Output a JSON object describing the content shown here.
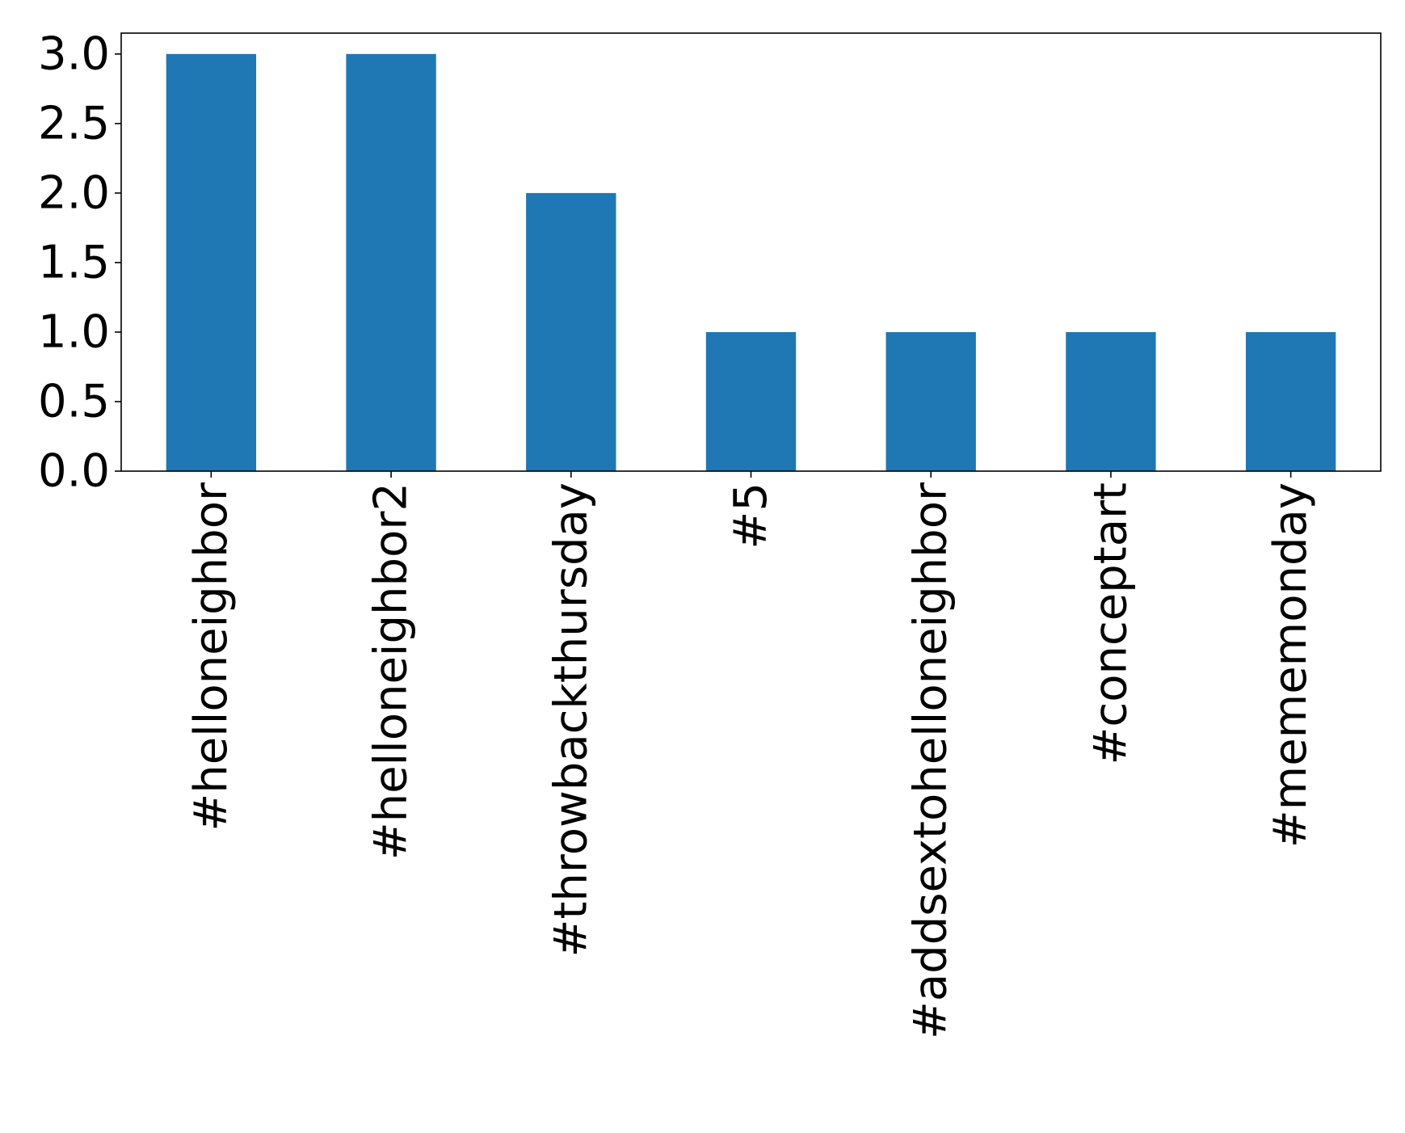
{
  "chart_data": {
    "type": "bar",
    "title": "",
    "xlabel": "",
    "ylabel": "",
    "categories": [
      "#helloneighbor",
      "#helloneighbor2",
      "#throwbackthursday",
      "#5",
      "#addsextohelloneighbor",
      "#conceptart",
      "#mememonday"
    ],
    "values": [
      3,
      3,
      2,
      1,
      1,
      1,
      1
    ],
    "ylim": [
      0,
      3.15
    ],
    "yticks": [
      0.0,
      0.5,
      1.0,
      1.5,
      2.0,
      2.5,
      3.0
    ],
    "ytick_labels": [
      "0.0",
      "0.5",
      "1.0",
      "1.5",
      "2.0",
      "2.5",
      "3.0"
    ],
    "bar_color": "#1f77b4",
    "grid": false,
    "legend": "none"
  }
}
